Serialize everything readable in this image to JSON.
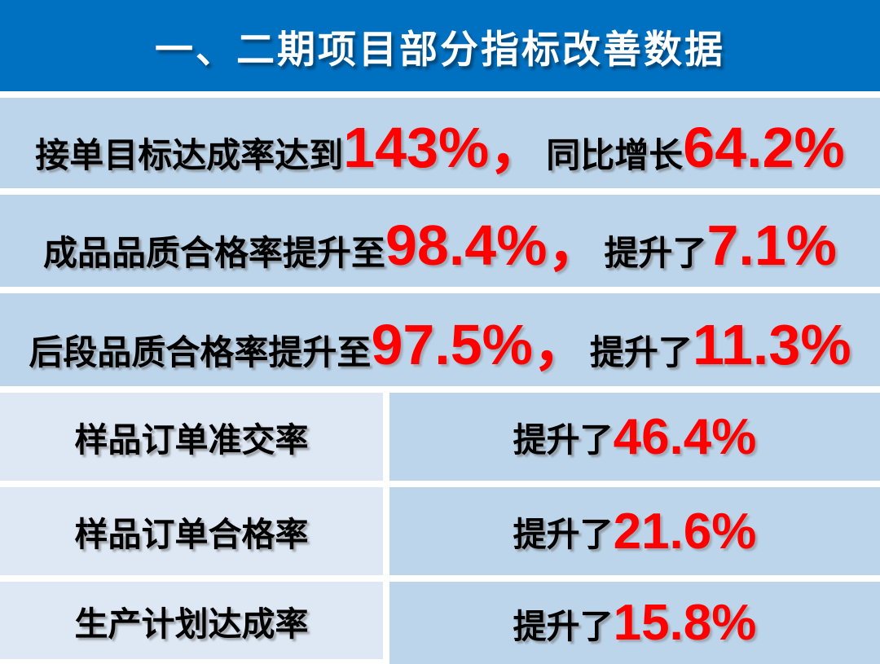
{
  "colors": {
    "header_bg": "#0070C0",
    "header_text": "#FFFFFF",
    "band_bg": "#BDD5EB",
    "left_cell_bg": "#DEE8F5",
    "highlight": "#FF0000",
    "body_text": "#000000",
    "gap": "#FFFFFF"
  },
  "header": {
    "title": "一、二期项目部分指标改善数据"
  },
  "stats": [
    {
      "pre": "接单目标达成率达到",
      "num1": "143%",
      "sep": "，",
      "mid": "同比增长",
      "num2": "64.2%"
    },
    {
      "pre": "成品品质合格率提升至",
      "num1": "98.4%",
      "sep": "，",
      "mid": "提升了",
      "num2": "7.1%"
    },
    {
      "pre": "后段品质合格率提升至",
      "num1": "97.5%",
      "sep": "，",
      "mid": "提升了",
      "num2": "11.3%"
    }
  ],
  "table": {
    "rows": [
      {
        "label": "样品订单准交率",
        "prefix": "提升了",
        "value": "46.4%"
      },
      {
        "label": "样品订单合格率",
        "prefix": "提升了",
        "value": "21.6%"
      },
      {
        "label": "生产计划达成率",
        "prefix": "提升了",
        "value": "15.8%"
      }
    ]
  }
}
